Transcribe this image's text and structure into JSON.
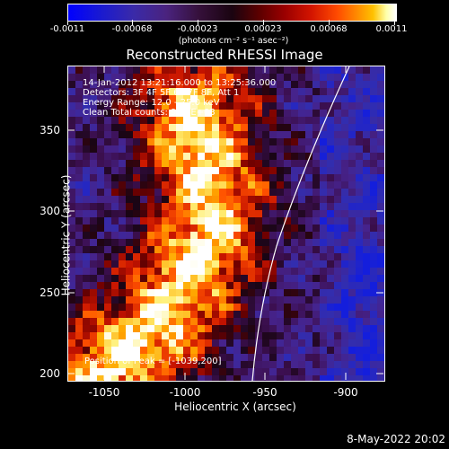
{
  "colorbar": {
    "ticks": [
      "-0.0011",
      "-0.00068",
      "-0.00023",
      "0.00023",
      "0.00068",
      "0.0011"
    ],
    "units_label": "(photons cm⁻² s⁻¹ asec⁻²)"
  },
  "title": "Reconstructed RHESSI Image",
  "info": {
    "line1": "14-Jan-2012 13:21:16.000 to 13:25:36.000",
    "line2": "Detectors: 3F 4F 5F 6F 7F 8F, Att 1",
    "line3": "Energy Range: 12.0 - 25.0 keV",
    "line4": "Clean    Total counts: 9.26E+03",
    "peak": "Position of Peak = [-1039,200]"
  },
  "axes": {
    "xlabel": "Heliocentric X (arcsec)",
    "ylabel": "Heliocentric Y (arcsec)",
    "xticks": [
      "-1050",
      "-1000",
      "-950",
      "-900"
    ],
    "yticks": [
      "350",
      "300",
      "250",
      "200"
    ]
  },
  "datestamp": "8-May-2022 20:02",
  "colors": {
    "background": "#000000",
    "axis": "#ffffff"
  }
}
